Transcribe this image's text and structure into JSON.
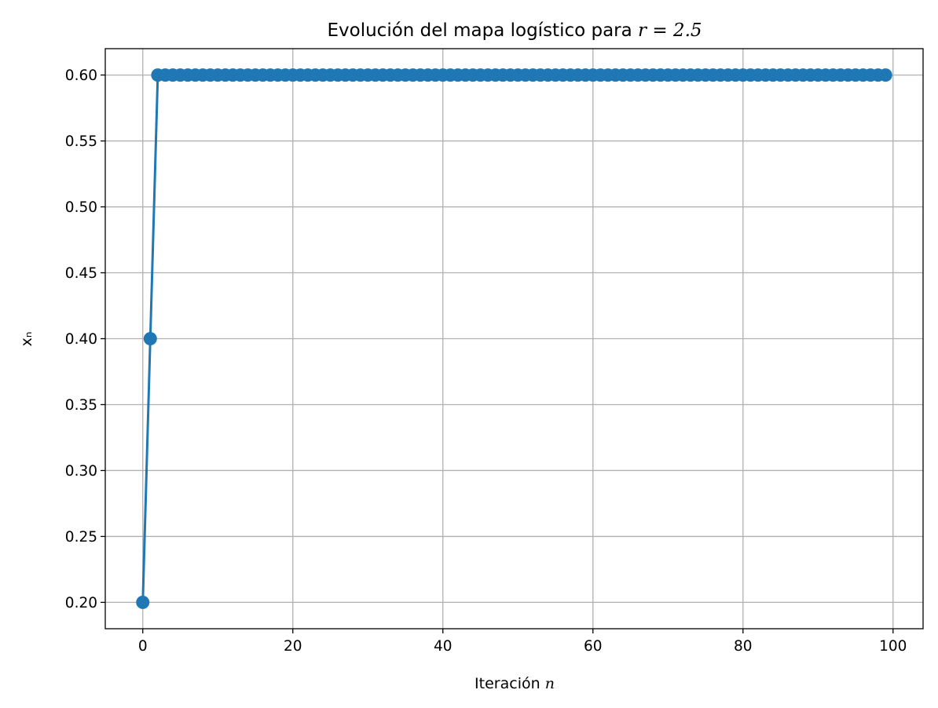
{
  "chart_data": {
    "type": "line",
    "title": "Evolución del mapa logístico para r = 2.5",
    "title_prefix": "Evolución del mapa logístico para ",
    "title_math": "r = 2.5",
    "xlabel": "Iteración n",
    "xlabel_prefix": "Iteración ",
    "xlabel_math": "n",
    "ylabel": "xₙ",
    "xlim": [
      -5,
      104
    ],
    "ylim": [
      0.18,
      0.62
    ],
    "xticks": [
      0,
      20,
      40,
      60,
      80,
      100
    ],
    "xtick_labels": [
      "0",
      "20",
      "40",
      "60",
      "80",
      "100"
    ],
    "yticks": [
      0.2,
      0.25,
      0.3,
      0.35,
      0.4,
      0.45,
      0.5,
      0.55,
      0.6
    ],
    "ytick_labels": [
      "0.20",
      "0.25",
      "0.30",
      "0.35",
      "0.40",
      "0.45",
      "0.50",
      "0.55",
      "0.60"
    ],
    "grid": true,
    "legend": false,
    "series": [
      {
        "color": "#1f77b4",
        "marker": "circle",
        "x": [
          0,
          1,
          2,
          3,
          4,
          5,
          6,
          7,
          8,
          9,
          10,
          11,
          12,
          13,
          14,
          15,
          16,
          17,
          18,
          19,
          20,
          21,
          22,
          23,
          24,
          25,
          26,
          27,
          28,
          29,
          30,
          31,
          32,
          33,
          34,
          35,
          36,
          37,
          38,
          39,
          40,
          41,
          42,
          43,
          44,
          45,
          46,
          47,
          48,
          49,
          50,
          51,
          52,
          53,
          54,
          55,
          56,
          57,
          58,
          59,
          60,
          61,
          62,
          63,
          64,
          65,
          66,
          67,
          68,
          69,
          70,
          71,
          72,
          73,
          74,
          75,
          76,
          77,
          78,
          79,
          80,
          81,
          82,
          83,
          84,
          85,
          86,
          87,
          88,
          89,
          90,
          91,
          92,
          93,
          94,
          95,
          96,
          97,
          98,
          99
        ],
        "y": [
          0.2,
          0.4,
          0.6,
          0.6,
          0.6,
          0.6,
          0.6,
          0.6,
          0.6,
          0.6,
          0.6,
          0.6,
          0.6,
          0.6,
          0.6,
          0.6,
          0.6,
          0.6,
          0.6,
          0.6,
          0.6,
          0.6,
          0.6,
          0.6,
          0.6,
          0.6,
          0.6,
          0.6,
          0.6,
          0.6,
          0.6,
          0.6,
          0.6,
          0.6,
          0.6,
          0.6,
          0.6,
          0.6,
          0.6,
          0.6,
          0.6,
          0.6,
          0.6,
          0.6,
          0.6,
          0.6,
          0.6,
          0.6,
          0.6,
          0.6,
          0.6,
          0.6,
          0.6,
          0.6,
          0.6,
          0.6,
          0.6,
          0.6,
          0.6,
          0.6,
          0.6,
          0.6,
          0.6,
          0.6,
          0.6,
          0.6,
          0.6,
          0.6,
          0.6,
          0.6,
          0.6,
          0.6,
          0.6,
          0.6,
          0.6,
          0.6,
          0.6,
          0.6,
          0.6,
          0.6,
          0.6,
          0.6,
          0.6,
          0.6,
          0.6,
          0.6,
          0.6,
          0.6,
          0.6,
          0.6,
          0.6,
          0.6,
          0.6,
          0.6,
          0.6,
          0.6,
          0.6,
          0.6,
          0.6,
          0.6
        ]
      }
    ]
  }
}
